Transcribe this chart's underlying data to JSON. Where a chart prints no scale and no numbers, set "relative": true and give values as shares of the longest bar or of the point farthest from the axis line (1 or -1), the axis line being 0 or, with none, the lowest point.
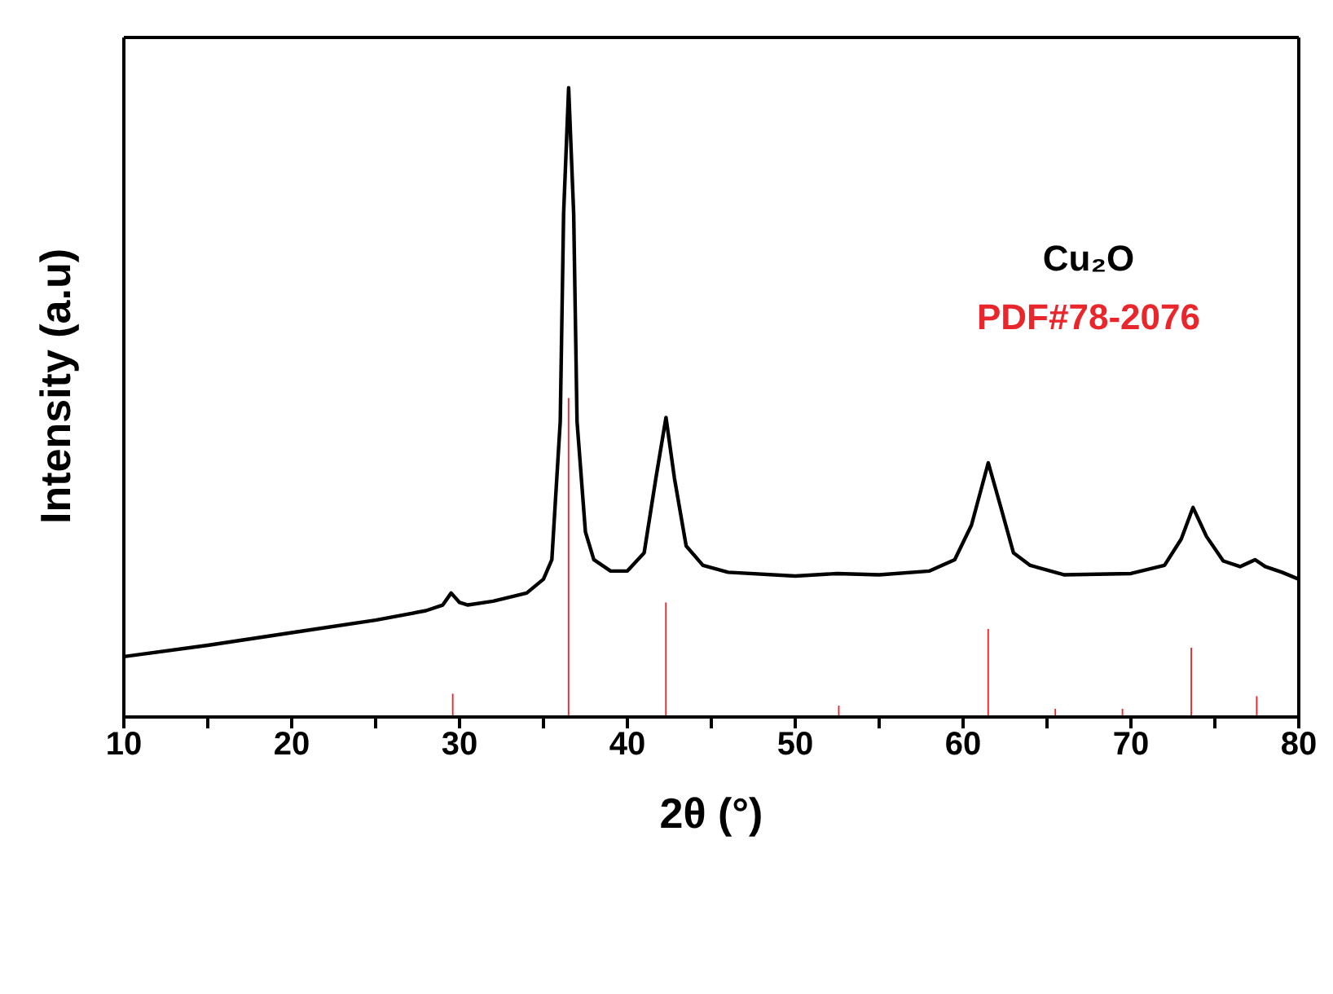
{
  "chart_data": {
    "type": "line",
    "relative": true,
    "xlabel": "2θ (°)",
    "ylabel": "Intensity (a.u)",
    "legend": "right",
    "xlim": [
      10,
      80
    ],
    "xticks": [
      10,
      {
        "value": 15,
        "label": null
      },
      20,
      {
        "value": 25,
        "label": null
      },
      30,
      {
        "value": 35,
        "label": null
      },
      40,
      {
        "value": 45,
        "label": null
      },
      50,
      {
        "value": 55,
        "label": null
      },
      60,
      {
        "value": 65,
        "label": null
      },
      70,
      {
        "value": 75,
        "label": null
      },
      80
    ],
    "series": [
      {
        "name": "Cu₂O",
        "color": "#000000",
        "x": [
          10,
          15,
          20,
          25,
          28,
          29,
          29.5,
          30,
          30.5,
          32,
          34,
          35,
          35.5,
          36,
          36.2,
          36.5,
          36.8,
          37,
          37.5,
          38,
          39,
          40,
          41,
          41.7,
          42.3,
          42.8,
          43.5,
          44.5,
          46,
          50,
          52.5,
          55,
          58,
          59.5,
          60.5,
          61.5,
          62.2,
          63,
          64,
          66,
          70,
          72,
          73,
          73.7,
          74.5,
          75.5,
          76.5,
          77.4,
          78,
          79,
          80
        ],
        "values": [
          0.096,
          0.114,
          0.134,
          0.154,
          0.169,
          0.178,
          0.197,
          0.182,
          0.178,
          0.184,
          0.197,
          0.219,
          0.25,
          0.47,
          0.8,
          1.0,
          0.8,
          0.47,
          0.294,
          0.25,
          0.232,
          0.232,
          0.261,
          0.38,
          0.476,
          0.38,
          0.272,
          0.241,
          0.23,
          0.224,
          0.228,
          0.226,
          0.232,
          0.25,
          0.305,
          0.404,
          0.338,
          0.261,
          0.241,
          0.226,
          0.228,
          0.241,
          0.283,
          0.333,
          0.287,
          0.248,
          0.239,
          0.25,
          0.239,
          0.23,
          0.219
        ]
      },
      {
        "name": "PDF#78-2076",
        "type": "bar",
        "color": "#e8262b",
        "x": [
          29.6,
          36.5,
          42.3,
          52.6,
          61.5,
          65.5,
          69.5,
          73.6,
          77.5
        ],
        "values": [
          0.037,
          0.507,
          0.182,
          0.018,
          0.14,
          0.013,
          0.013,
          0.11,
          0.033
        ]
      }
    ]
  }
}
